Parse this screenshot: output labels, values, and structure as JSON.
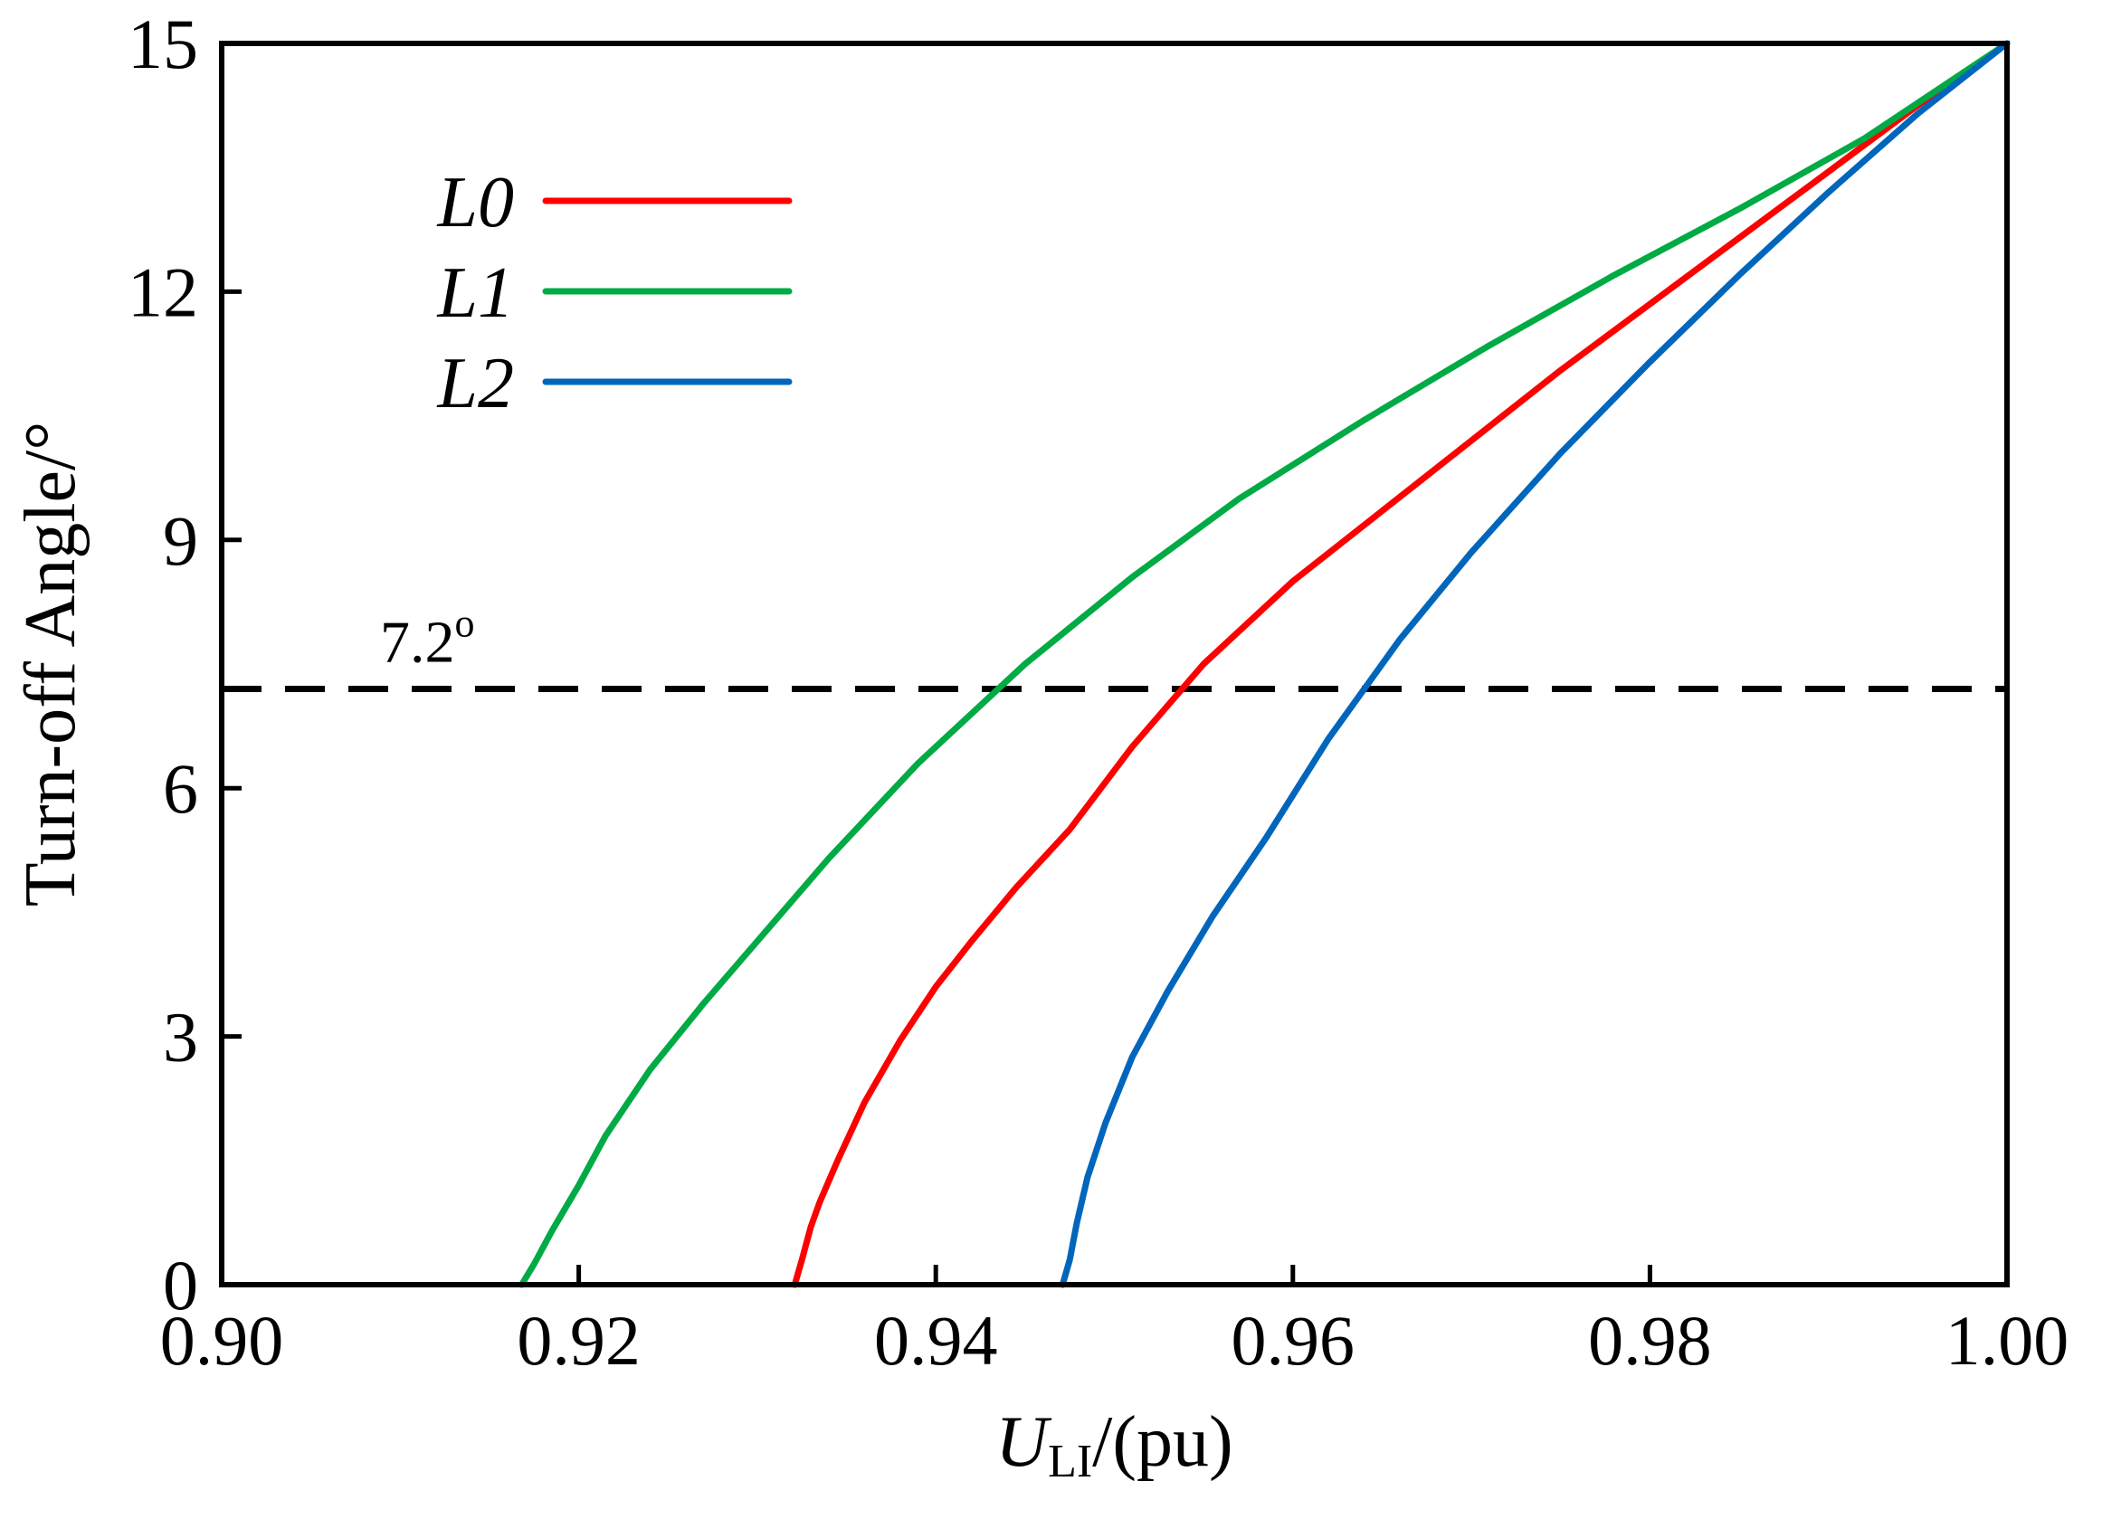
{
  "chart_data": {
    "type": "line",
    "xlabel_main": "U",
    "xlabel_sub": "LI",
    "xlabel_tail": "/(pu)",
    "ylabel": "Turn-off Angle/°",
    "xlim": [
      0.9,
      1.0
    ],
    "ylim": [
      0,
      15
    ],
    "x_ticks": [
      "0.90",
      "0.92",
      "0.94",
      "0.96",
      "0.98",
      "1.00"
    ],
    "y_ticks": [
      "0",
      "3",
      "6",
      "9",
      "12",
      "15"
    ],
    "x_tick_values": [
      0.9,
      0.92,
      0.94,
      0.96,
      0.98,
      1.0
    ],
    "y_tick_values": [
      0,
      3,
      6,
      9,
      12,
      15
    ],
    "grid": false,
    "legend_position": "top-left",
    "series": [
      {
        "name": "L0",
        "color": "#ff0000",
        "x": [
          0.9321,
          0.9325,
          0.933,
          0.9335,
          0.9345,
          0.936,
          0.938,
          0.94,
          0.942,
          0.9445,
          0.9475,
          0.951,
          0.955,
          0.96,
          0.965,
          0.97,
          0.975,
          0.98,
          0.985,
          0.99,
          0.995,
          1.0
        ],
        "y": [
          0.0,
          0.3,
          0.7,
          1.0,
          1.5,
          2.2,
          2.95,
          3.6,
          4.15,
          4.8,
          5.5,
          6.5,
          7.5,
          8.5,
          9.35,
          10.2,
          11.05,
          11.85,
          12.65,
          13.45,
          14.25,
          15.0
        ]
      },
      {
        "name": "L1",
        "color": "#00aa44",
        "x": [
          0.9168,
          0.9175,
          0.9185,
          0.92,
          0.9215,
          0.924,
          0.927,
          0.93,
          0.934,
          0.939,
          0.945,
          0.951,
          0.957,
          0.964,
          0.971,
          0.978,
          0.985,
          0.992,
          1.0
        ],
        "y": [
          0.0,
          0.25,
          0.65,
          1.2,
          1.8,
          2.6,
          3.4,
          4.15,
          5.15,
          6.3,
          7.5,
          8.55,
          9.5,
          10.45,
          11.35,
          12.2,
          13.0,
          13.85,
          15.0
        ]
      },
      {
        "name": "L2",
        "color": "#0066bb",
        "x": [
          0.9471,
          0.9475,
          0.9479,
          0.9485,
          0.9495,
          0.951,
          0.953,
          0.9555,
          0.9585,
          0.962,
          0.966,
          0.97,
          0.975,
          0.98,
          0.985,
          0.99,
          0.995,
          1.0
        ],
        "y": [
          0.0,
          0.3,
          0.75,
          1.3,
          1.95,
          2.75,
          3.55,
          4.45,
          5.4,
          6.6,
          7.8,
          8.85,
          10.05,
          11.15,
          12.2,
          13.2,
          14.15,
          15.0
        ]
      }
    ],
    "reference_line": {
      "y": 7.2,
      "label_main": "7.2",
      "label_sup": "o",
      "style": "dashed",
      "color": "#000000"
    }
  }
}
